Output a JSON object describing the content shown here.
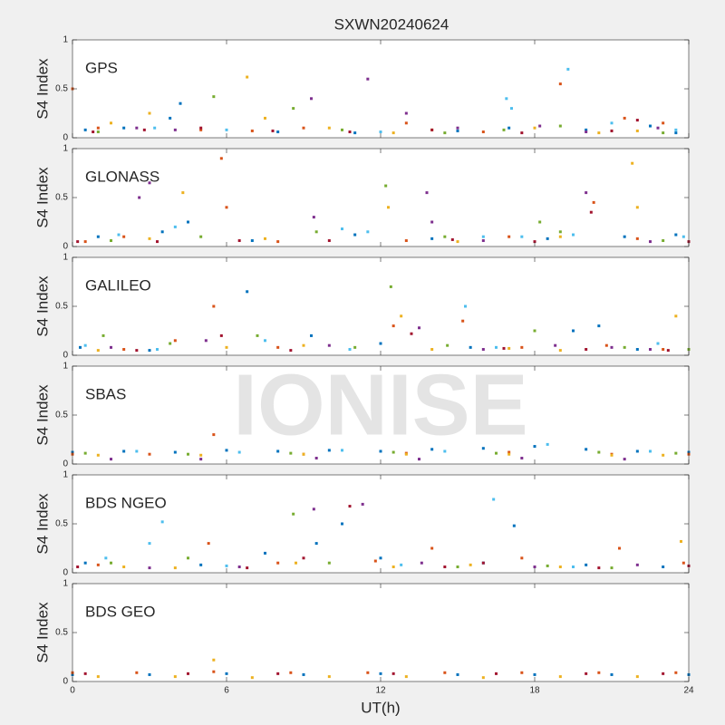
{
  "figure": {
    "title": "SXWN20240624",
    "xlabel": "UT(h)",
    "watermark": "IONISE"
  },
  "chart_data": [
    {
      "type": "scatter",
      "label": "GPS",
      "ylabel": "S4 Index",
      "xlim": [
        0,
        24
      ],
      "xticks": [
        0,
        6,
        12,
        18,
        24
      ],
      "ylim": [
        0,
        1
      ],
      "yticks": [
        0,
        0.5,
        1
      ],
      "series": [
        {
          "color": "#0072BD",
          "x": [
            0.5,
            2,
            3.8,
            4.2,
            8,
            11,
            15,
            17,
            20,
            22.5,
            23.5
          ],
          "values": [
            0.08,
            0.1,
            0.2,
            0.35,
            0.06,
            0.05,
            0.07,
            0.1,
            0.08,
            0.12,
            0.05
          ]
        },
        {
          "color": "#D95319",
          "x": [
            0,
            1,
            5,
            7,
            9,
            13,
            16,
            19,
            21.5,
            23
          ],
          "values": [
            0.5,
            0.1,
            0.08,
            0.07,
            0.1,
            0.15,
            0.06,
            0.55,
            0.2,
            0.15
          ]
        },
        {
          "color": "#EDB120",
          "x": [
            1.5,
            3,
            6.8,
            7.5,
            10,
            12.5,
            14,
            18,
            20.5,
            22
          ],
          "values": [
            0.15,
            0.25,
            0.62,
            0.2,
            0.1,
            0.05,
            0.08,
            0.1,
            0.05,
            0.07
          ]
        },
        {
          "color": "#7E2F8E",
          "x": [
            2.5,
            4,
            9.3,
            11.5,
            13,
            15,
            18.2,
            20,
            22.8
          ],
          "values": [
            0.1,
            0.08,
            0.4,
            0.6,
            0.25,
            0.1,
            0.12,
            0.06,
            0.1
          ]
        },
        {
          "color": "#77AC30",
          "x": [
            1,
            5.5,
            8.6,
            10.5,
            14.5,
            16.8,
            19,
            21,
            23
          ],
          "values": [
            0.06,
            0.42,
            0.3,
            0.08,
            0.05,
            0.08,
            0.12,
            0.07,
            0.05
          ]
        },
        {
          "color": "#4DBEEE",
          "x": [
            3.2,
            6,
            12,
            16.9,
            17.1,
            19.3,
            21,
            23.5
          ],
          "values": [
            0.1,
            0.08,
            0.06,
            0.4,
            0.3,
            0.7,
            0.15,
            0.08
          ]
        },
        {
          "color": "#A2142F",
          "x": [
            0.8,
            2.8,
            5,
            7.8,
            10.8,
            14,
            17.5,
            21,
            22
          ],
          "values": [
            0.06,
            0.08,
            0.1,
            0.07,
            0.06,
            0.08,
            0.05,
            0.07,
            0.18
          ]
        }
      ]
    },
    {
      "type": "scatter",
      "label": "GLONASS",
      "ylabel": "S4 Index",
      "xlim": [
        0,
        24
      ],
      "xticks": [
        0,
        6,
        12,
        18,
        24
      ],
      "ylim": [
        0,
        1
      ],
      "yticks": [
        0,
        0.5,
        1
      ],
      "series": [
        {
          "color": "#0072BD",
          "x": [
            1,
            3.5,
            4.5,
            7,
            11,
            14,
            18.5,
            21.5,
            23.5
          ],
          "values": [
            0.1,
            0.15,
            0.25,
            0.06,
            0.12,
            0.08,
            0.08,
            0.1,
            0.12
          ]
        },
        {
          "color": "#D95319",
          "x": [
            0.5,
            2,
            5.8,
            6,
            8,
            13,
            17,
            20.3,
            22
          ],
          "values": [
            0.05,
            0.1,
            0.9,
            0.4,
            0.05,
            0.06,
            0.1,
            0.45,
            0.08
          ]
        },
        {
          "color": "#EDB120",
          "x": [
            3,
            4.3,
            7.5,
            12.3,
            15,
            19,
            21.8,
            22
          ],
          "values": [
            0.08,
            0.55,
            0.08,
            0.4,
            0.05,
            0.1,
            0.85,
            0.4
          ]
        },
        {
          "color": "#7E2F8E",
          "x": [
            2.6,
            3,
            9.4,
            13.8,
            14,
            16,
            20,
            22.5
          ],
          "values": [
            0.5,
            0.65,
            0.3,
            0.55,
            0.25,
            0.06,
            0.55,
            0.05
          ]
        },
        {
          "color": "#77AC30",
          "x": [
            1.5,
            5,
            9.5,
            12.2,
            14.5,
            18.2,
            19,
            23
          ],
          "values": [
            0.06,
            0.1,
            0.15,
            0.62,
            0.1,
            0.25,
            0.15,
            0.06
          ]
        },
        {
          "color": "#4DBEEE",
          "x": [
            1.8,
            4,
            10.5,
            11.5,
            16,
            17.5,
            19.5,
            23.8
          ],
          "values": [
            0.12,
            0.2,
            0.18,
            0.15,
            0.1,
            0.1,
            0.12,
            0.1
          ]
        },
        {
          "color": "#A2142F",
          "x": [
            0.2,
            3.3,
            6.5,
            10,
            14.8,
            18,
            20.2,
            24
          ],
          "values": [
            0.05,
            0.05,
            0.06,
            0.06,
            0.07,
            0.05,
            0.35,
            0.05
          ]
        }
      ]
    },
    {
      "type": "scatter",
      "label": "GALILEO",
      "ylabel": "S4 Index",
      "xlim": [
        0,
        24
      ],
      "xticks": [
        0,
        6,
        12,
        18,
        24
      ],
      "ylim": [
        0,
        1
      ],
      "yticks": [
        0,
        0.5,
        1
      ],
      "series": [
        {
          "color": "#0072BD",
          "x": [
            0.3,
            3,
            6.8,
            9.3,
            12,
            15.5,
            19.5,
            20.5,
            22
          ],
          "values": [
            0.08,
            0.05,
            0.65,
            0.2,
            0.12,
            0.08,
            0.25,
            0.3,
            0.06
          ]
        },
        {
          "color": "#D95319",
          "x": [
            2,
            4,
            5.5,
            8,
            12.5,
            15.2,
            17.5,
            20.8,
            23
          ],
          "values": [
            0.06,
            0.15,
            0.5,
            0.08,
            0.3,
            0.35,
            0.08,
            0.1,
            0.06
          ]
        },
        {
          "color": "#EDB120",
          "x": [
            1,
            6,
            9,
            12.8,
            14,
            17,
            19,
            23.5
          ],
          "values": [
            0.05,
            0.08,
            0.1,
            0.4,
            0.06,
            0.07,
            0.05,
            0.4
          ]
        },
        {
          "color": "#7E2F8E",
          "x": [
            1.5,
            5.2,
            10,
            13.5,
            16,
            18.8,
            21,
            22.5
          ],
          "values": [
            0.08,
            0.15,
            0.1,
            0.28,
            0.06,
            0.1,
            0.08,
            0.06
          ]
        },
        {
          "color": "#77AC30",
          "x": [
            1.2,
            3.8,
            7.2,
            11,
            12.4,
            14.6,
            18,
            21.5,
            24
          ],
          "values": [
            0.2,
            0.12,
            0.2,
            0.08,
            0.7,
            0.1,
            0.25,
            0.08,
            0.06
          ]
        },
        {
          "color": "#4DBEEE",
          "x": [
            0.5,
            3.3,
            7.5,
            10.8,
            15.3,
            16.5,
            22.8
          ],
          "values": [
            0.1,
            0.06,
            0.15,
            0.06,
            0.5,
            0.08,
            0.12
          ]
        },
        {
          "color": "#A2142F",
          "x": [
            2.5,
            5.8,
            8.5,
            13.2,
            16.8,
            20,
            23.2
          ],
          "values": [
            0.05,
            0.2,
            0.05,
            0.22,
            0.07,
            0.06,
            0.05
          ]
        }
      ]
    },
    {
      "type": "scatter",
      "label": "SBAS",
      "ylabel": "S4 Index",
      "xlim": [
        0,
        24
      ],
      "xticks": [
        0,
        6,
        12,
        18,
        24
      ],
      "ylim": [
        0,
        1
      ],
      "yticks": [
        0,
        0.5,
        1
      ],
      "series": [
        {
          "color": "#0072BD",
          "x": [
            0,
            2,
            4,
            6,
            8,
            10,
            12,
            14,
            16,
            18,
            20,
            22,
            24
          ],
          "values": [
            0.12,
            0.13,
            0.12,
            0.14,
            0.13,
            0.14,
            0.13,
            0.15,
            0.16,
            0.18,
            0.15,
            0.13,
            0.12
          ]
        },
        {
          "color": "#D95319",
          "x": [
            0,
            3,
            5.5,
            9,
            13,
            17,
            21,
            24
          ],
          "values": [
            0.1,
            0.1,
            0.3,
            0.1,
            0.11,
            0.12,
            0.1,
            0.1
          ]
        },
        {
          "color": "#EDB120",
          "x": [
            1,
            5,
            9,
            13,
            17,
            21,
            23
          ],
          "values": [
            0.09,
            0.09,
            0.1,
            0.1,
            0.1,
            0.09,
            0.09
          ]
        },
        {
          "color": "#77AC30",
          "x": [
            0.5,
            4.5,
            8.5,
            12.5,
            16.5,
            20.5,
            23.5
          ],
          "values": [
            0.11,
            0.1,
            0.11,
            0.12,
            0.11,
            0.12,
            0.11
          ]
        },
        {
          "color": "#7E2F8E",
          "x": [
            1.5,
            5,
            9.5,
            13.5,
            17.5,
            21.5
          ],
          "values": [
            0.05,
            0.05,
            0.06,
            0.05,
            0.06,
            0.05
          ]
        },
        {
          "color": "#4DBEEE",
          "x": [
            2.5,
            6.5,
            10.5,
            14.5,
            18.5,
            22.5
          ],
          "values": [
            0.13,
            0.12,
            0.14,
            0.13,
            0.2,
            0.13
          ]
        }
      ]
    },
    {
      "type": "scatter",
      "label": "BDS NGEO",
      "ylabel": "S4 Index",
      "xlim": [
        0,
        24
      ],
      "xticks": [
        0,
        6,
        12,
        18,
        24
      ],
      "ylim": [
        0,
        1
      ],
      "yticks": [
        0,
        0.5,
        1
      ],
      "series": [
        {
          "color": "#0072BD",
          "x": [
            0.5,
            5,
            7.5,
            9.5,
            10.5,
            12,
            16,
            17.2,
            20,
            23
          ],
          "values": [
            0.1,
            0.08,
            0.2,
            0.3,
            0.5,
            0.15,
            0.1,
            0.48,
            0.08,
            0.06
          ]
        },
        {
          "color": "#D95319",
          "x": [
            1,
            5.3,
            8,
            11.8,
            14,
            17.5,
            21.3,
            23.8
          ],
          "values": [
            0.08,
            0.3,
            0.1,
            0.12,
            0.25,
            0.15,
            0.25,
            0.1
          ]
        },
        {
          "color": "#EDB120",
          "x": [
            2,
            4,
            8.7,
            12.5,
            15.5,
            19,
            23.7
          ],
          "values": [
            0.06,
            0.05,
            0.1,
            0.06,
            0.08,
            0.06,
            0.32
          ]
        },
        {
          "color": "#7E2F8E",
          "x": [
            3,
            6.5,
            9.4,
            11.3,
            13.6,
            18,
            22
          ],
          "values": [
            0.05,
            0.06,
            0.65,
            0.7,
            0.1,
            0.06,
            0.08
          ]
        },
        {
          "color": "#77AC30",
          "x": [
            1.5,
            4.5,
            8.6,
            10,
            15,
            18.5,
            21
          ],
          "values": [
            0.1,
            0.15,
            0.6,
            0.1,
            0.06,
            0.07,
            0.05
          ]
        },
        {
          "color": "#4DBEEE",
          "x": [
            1.3,
            3,
            3.5,
            6,
            12.8,
            16.4,
            19.5
          ],
          "values": [
            0.15,
            0.3,
            0.52,
            0.07,
            0.08,
            0.75,
            0.06
          ]
        },
        {
          "color": "#A2142F",
          "x": [
            0.2,
            6.8,
            9,
            10.8,
            14.5,
            16,
            20.5,
            24
          ],
          "values": [
            0.06,
            0.05,
            0.15,
            0.68,
            0.06,
            0.1,
            0.05,
            0.07
          ]
        }
      ]
    },
    {
      "type": "scatter",
      "label": "BDS GEO",
      "ylabel": "S4 Index",
      "xlim": [
        0,
        24
      ],
      "xticks": [
        0,
        6,
        12,
        18,
        24
      ],
      "ylim": [
        0,
        1
      ],
      "yticks": [
        0,
        0.5,
        1
      ],
      "series": [
        {
          "color": "#0072BD",
          "x": [
            0,
            3,
            6,
            9,
            12,
            15,
            18,
            21,
            24
          ],
          "values": [
            0.07,
            0.07,
            0.08,
            0.07,
            0.08,
            0.07,
            0.07,
            0.07,
            0.07
          ]
        },
        {
          "color": "#D95319",
          "x": [
            0,
            2.5,
            5.5,
            8.5,
            11.5,
            14.5,
            17.5,
            20.5,
            23.5
          ],
          "values": [
            0.09,
            0.09,
            0.1,
            0.09,
            0.09,
            0.09,
            0.09,
            0.09,
            0.09
          ]
        },
        {
          "color": "#EDB120",
          "x": [
            1,
            4,
            5.5,
            7,
            10,
            13,
            16,
            19,
            22
          ],
          "values": [
            0.05,
            0.05,
            0.22,
            0.04,
            0.05,
            0.05,
            0.04,
            0.05,
            0.05
          ]
        },
        {
          "color": "#A2142F",
          "x": [
            0.5,
            4.5,
            8,
            12.5,
            16.5,
            20,
            23
          ],
          "values": [
            0.08,
            0.08,
            0.08,
            0.08,
            0.08,
            0.08,
            0.08
          ]
        }
      ]
    }
  ]
}
